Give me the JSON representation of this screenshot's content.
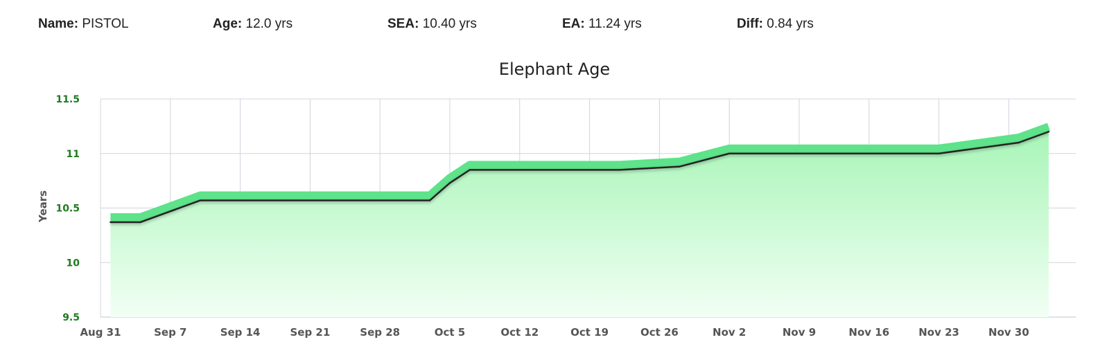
{
  "header": {
    "name_label": "Name:",
    "name_value": "PISTOL",
    "age_label": "Age:",
    "age_value": "12.0 yrs",
    "sea_label": "SEA:",
    "sea_value": "10.40 yrs",
    "ea_label": "EA:",
    "ea_value": "11.24 yrs",
    "diff_label": "Diff:",
    "diff_value": "0.84 yrs"
  },
  "chart_data": {
    "type": "area",
    "title": "Elephant Age",
    "ylabel": "Years",
    "xlabel": "",
    "ylim": [
      9.5,
      11.5
    ],
    "yticks": [
      "9.5",
      "10",
      "10.5",
      "11",
      "11.5"
    ],
    "xticks": [
      "Aug 31",
      "Sep 7",
      "Sep 14",
      "Sep 21",
      "Sep 28",
      "Oct 5",
      "Oct 12",
      "Oct 19",
      "Oct 26",
      "Nov 2",
      "Nov 9",
      "Nov 16",
      "Nov 23",
      "Nov 30"
    ],
    "grid": true,
    "colors": {
      "band": "#5ee28a",
      "line": "#222222",
      "fill_top": "#a8f5b8",
      "fill_bottom": "#f2fff4"
    },
    "series": [
      {
        "x": [
          "2015-09-01",
          "2015-09-04",
          "2015-09-10",
          "2015-10-03",
          "2015-10-05",
          "2015-10-07",
          "2015-10-22",
          "2015-10-28",
          "2015-11-02",
          "2015-11-23",
          "2015-12-01",
          "2015-12-04"
        ],
        "y": [
          10.37,
          10.37,
          10.57,
          10.57,
          10.73,
          10.85,
          10.85,
          10.88,
          11.0,
          11.0,
          11.1,
          11.2
        ]
      }
    ]
  }
}
